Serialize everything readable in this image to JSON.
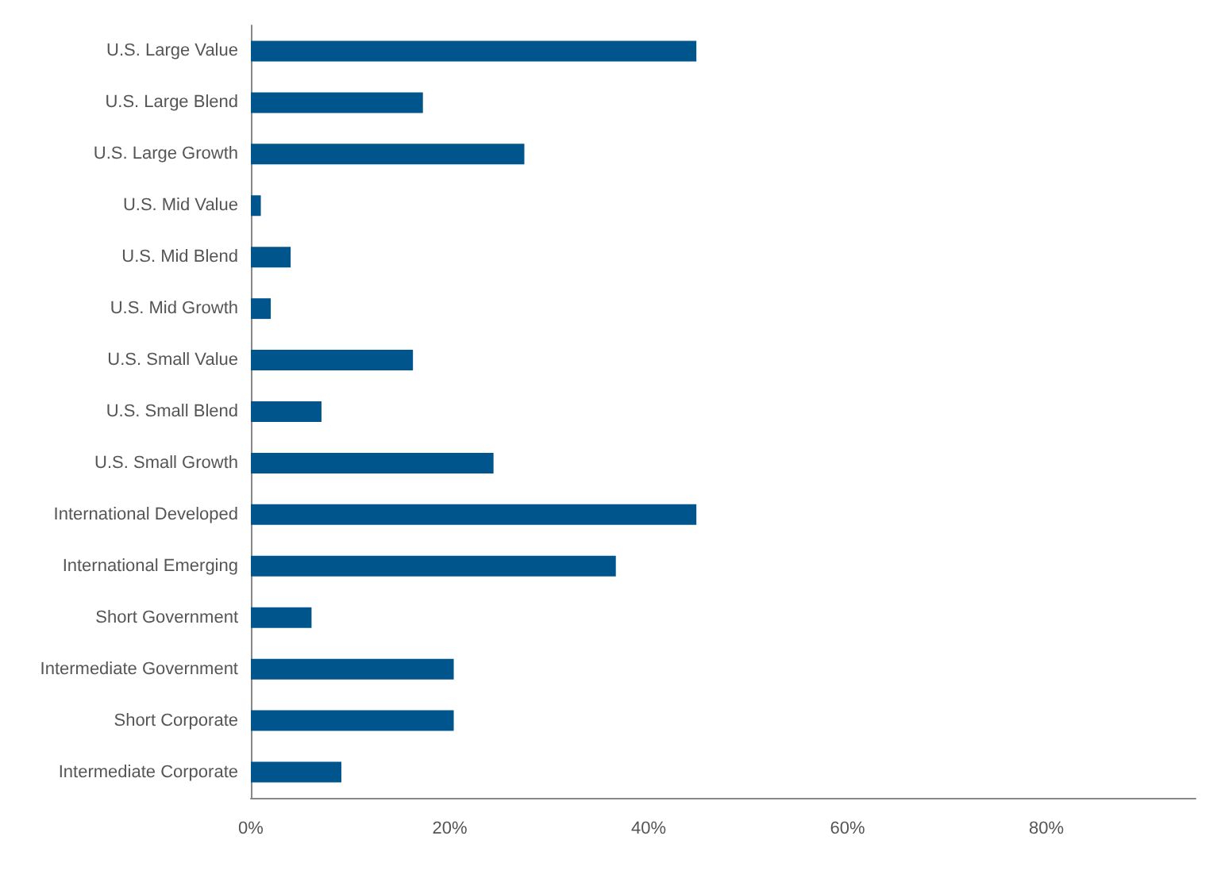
{
  "chart_data": {
    "type": "bar",
    "orientation": "horizontal",
    "categories": [
      "U.S. Large Value",
      "U.S. Large Blend",
      "U.S. Large Growth",
      "U.S. Mid Value",
      "U.S. Mid Blend",
      "U.S. Mid Growth",
      "U.S. Small Value",
      "U.S. Small Blend",
      "U.S. Small Growth",
      "International Developed",
      "International Emerging",
      "Short Government",
      "Intermediate Government",
      "Short Corporate",
      "Intermediate Corporate"
    ],
    "values": [
      44.8,
      17.3,
      27.5,
      1,
      4,
      2,
      16.3,
      7.1,
      24.4,
      44.8,
      36.7,
      6.1,
      20.4,
      20.4,
      9.1
    ],
    "color": "#00558c",
    "xlim": [
      0,
      95
    ],
    "xticks": [
      {
        "value": 0,
        "label": "0%"
      },
      {
        "value": 20,
        "label": "20%"
      },
      {
        "value": 40,
        "label": "40%"
      },
      {
        "value": 60,
        "label": "60%"
      },
      {
        "value": 80,
        "label": "80%"
      }
    ],
    "grid": false
  }
}
